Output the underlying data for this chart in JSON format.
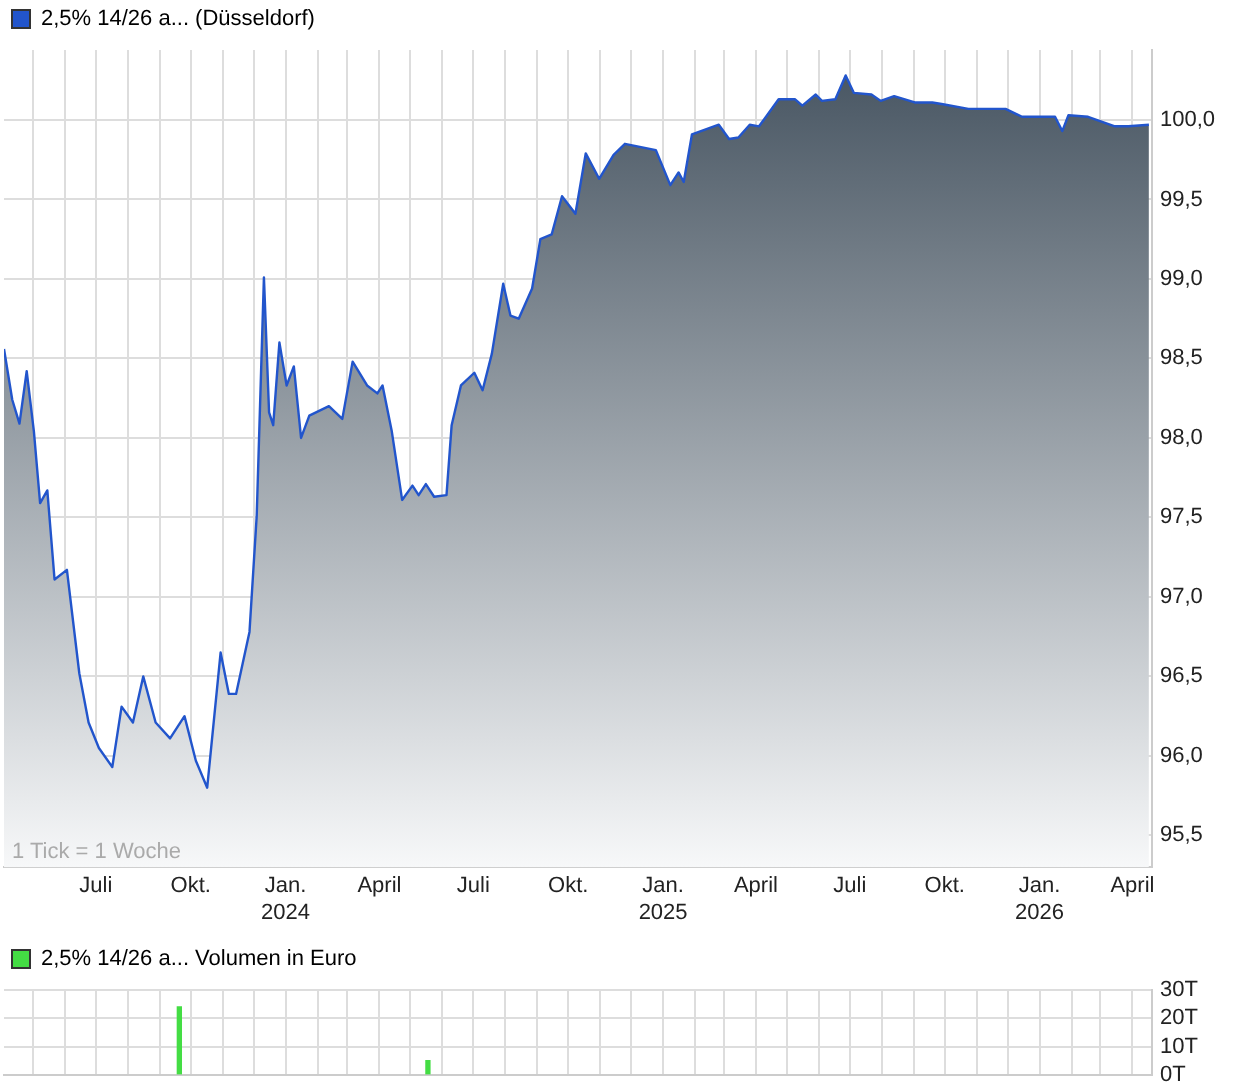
{
  "chart_data": [
    {
      "type": "area",
      "legend": "top left",
      "grid": true,
      "marker": "none",
      "annotations": [
        "1 Tick = 1 Woche"
      ],
      "x": [
        "2023-04-03",
        "2023-04-11",
        "2023-04-18",
        "2023-04-25",
        "2023-05-02",
        "2023-05-08",
        "2023-05-15",
        "2023-05-22",
        "2023-06-03",
        "2023-06-15",
        "2023-06-24",
        "2023-07-04",
        "2023-07-17",
        "2023-07-26",
        "2023-08-06",
        "2023-08-16",
        "2023-08-28",
        "2023-09-11",
        "2023-09-25",
        "2023-10-06",
        "2023-10-17",
        "2023-10-30",
        "2023-11-07",
        "2023-11-14",
        "2023-11-27",
        "2023-12-04",
        "2023-12-11",
        "2023-12-16",
        "2023-12-20",
        "2023-12-26",
        "2024-01-02",
        "2024-01-09",
        "2024-01-16",
        "2024-01-24",
        "2024-02-12",
        "2024-02-25",
        "2024-03-06",
        "2024-03-20",
        "2024-03-30",
        "2024-04-04",
        "2024-04-13",
        "2024-04-23",
        "2024-05-03",
        "2024-05-09",
        "2024-05-16",
        "2024-05-24",
        "2024-06-05",
        "2024-06-10",
        "2024-06-19",
        "2024-07-02",
        "2024-07-10",
        "2024-07-19",
        "2024-07-30",
        "2024-08-06",
        "2024-08-14",
        "2024-08-27",
        "2024-09-04",
        "2024-09-15",
        "2024-09-25",
        "2024-10-08",
        "2024-10-18",
        "2024-10-31",
        "2024-11-14",
        "2024-11-25",
        "2024-12-25",
        "2025-01-08",
        "2025-01-16",
        "2025-01-21",
        "2025-01-29",
        "2025-02-24",
        "2025-03-06",
        "2025-03-15",
        "2025-03-26",
        "2025-04-04",
        "2025-04-23",
        "2025-05-09",
        "2025-05-16",
        "2025-05-29",
        "2025-06-04",
        "2025-06-17",
        "2025-06-27",
        "2025-07-05",
        "2025-07-22",
        "2025-07-31",
        "2025-08-13",
        "2025-09-02",
        "2025-09-19",
        "2025-09-28",
        "2025-10-24",
        "2025-11-29",
        "2025-12-15",
        "2026-01-16",
        "2026-01-23",
        "2026-01-29",
        "2026-02-17",
        "2026-03-15",
        "2026-03-28",
        "2026-04-17"
      ],
      "series": [
        {
          "name": "2,5% 14/26 a... (Düsseldorf)",
          "color": "#2255cc",
          "values": [
            98.56,
            98.24,
            98.09,
            98.42,
            98.04,
            97.59,
            97.67,
            97.11,
            97.17,
            96.52,
            96.21,
            96.05,
            95.93,
            96.31,
            96.21,
            96.5,
            96.21,
            96.11,
            96.25,
            95.97,
            95.8,
            96.65,
            96.39,
            96.39,
            96.78,
            97.51,
            99.01,
            98.16,
            98.08,
            98.6,
            98.33,
            98.45,
            98.0,
            98.14,
            98.2,
            98.12,
            98.48,
            98.33,
            98.28,
            98.33,
            98.04,
            97.61,
            97.7,
            97.64,
            97.71,
            97.63,
            97.64,
            98.08,
            98.33,
            98.41,
            98.3,
            98.53,
            98.97,
            98.77,
            98.75,
            98.94,
            99.25,
            99.28,
            99.52,
            99.41,
            99.79,
            99.63,
            99.78,
            99.85,
            99.81,
            99.59,
            99.67,
            99.61,
            99.91,
            99.97,
            99.88,
            99.89,
            99.97,
            99.96,
            100.13,
            100.13,
            100.09,
            100.16,
            100.12,
            100.13,
            100.28,
            100.17,
            100.16,
            100.12,
            100.15,
            100.11,
            100.11,
            100.1,
            100.07,
            100.07,
            100.02,
            100.02,
            99.93,
            100.03,
            100.02,
            99.96,
            99.96,
            99.97
          ]
        }
      ],
      "xlim": [
        "2023-04-03",
        "2026-04-20"
      ],
      "xticks": [
        {
          "value": "2023-05-01",
          "label": null
        },
        {
          "value": "2023-06-01",
          "label": null
        },
        {
          "value": "2023-07-01",
          "label": "Juli"
        },
        {
          "value": "2023-08-01",
          "label": null
        },
        {
          "value": "2023-09-01",
          "label": null
        },
        {
          "value": "2023-10-01",
          "label": "Okt."
        },
        {
          "value": "2023-11-01",
          "label": null
        },
        {
          "value": "2023-12-01",
          "label": null
        },
        {
          "value": "2024-01-01",
          "label": "Jan.\n2024"
        },
        {
          "value": "2024-02-01",
          "label": null
        },
        {
          "value": "2024-03-01",
          "label": null
        },
        {
          "value": "2024-04-01",
          "label": "April"
        },
        {
          "value": "2024-05-01",
          "label": null
        },
        {
          "value": "2024-06-01",
          "label": null
        },
        {
          "value": "2024-07-01",
          "label": "Juli"
        },
        {
          "value": "2024-08-01",
          "label": null
        },
        {
          "value": "2024-09-01",
          "label": null
        },
        {
          "value": "2024-10-01",
          "label": "Okt."
        },
        {
          "value": "2024-11-01",
          "label": null
        },
        {
          "value": "2024-12-01",
          "label": null
        },
        {
          "value": "2025-01-01",
          "label": "Jan.\n2025"
        },
        {
          "value": "2025-02-01",
          "label": null
        },
        {
          "value": "2025-03-01",
          "label": null
        },
        {
          "value": "2025-04-01",
          "label": "April"
        },
        {
          "value": "2025-05-01",
          "label": null
        },
        {
          "value": "2025-06-01",
          "label": null
        },
        {
          "value": "2025-07-01",
          "label": "Juli"
        },
        {
          "value": "2025-08-01",
          "label": null
        },
        {
          "value": "2025-09-01",
          "label": null
        },
        {
          "value": "2025-10-01",
          "label": "Okt."
        },
        {
          "value": "2025-11-01",
          "label": null
        },
        {
          "value": "2025-12-01",
          "label": null
        },
        {
          "value": "2026-01-01",
          "label": "Jan.\n2026"
        },
        {
          "value": "2026-02-01",
          "label": null
        },
        {
          "value": "2026-03-01",
          "label": null
        },
        {
          "value": "2026-04-01",
          "label": "April"
        }
      ],
      "ylim": [
        95.3,
        100.44
      ],
      "yticks": [
        {
          "value": 95.5,
          "label": "95,5"
        },
        {
          "value": 96,
          "label": "96,0"
        },
        {
          "value": 96.5,
          "label": "96,5"
        },
        {
          "value": 97,
          "label": "97,0"
        },
        {
          "value": 97.5,
          "label": "97,5"
        },
        {
          "value": 98,
          "label": "98,0"
        },
        {
          "value": 98.5,
          "label": "98,5"
        },
        {
          "value": 99,
          "label": "99,0"
        },
        {
          "value": 99.5,
          "label": "99,5"
        },
        {
          "value": 100,
          "label": "100,0"
        }
      ]
    },
    {
      "type": "bar",
      "legend": "top left",
      "grid": true,
      "tick_labels": "y",
      "x": [
        "2023-09-20",
        "2024-05-18"
      ],
      "series": [
        {
          "name": "2,5% 14/26 a... Volumen in Euro",
          "color": "#44dd44",
          "values": [
            24,
            5
          ]
        }
      ],
      "xlim": [
        "2023-04-03",
        "2026-04-20"
      ],
      "xticks": [
        {
          "value": "2023-05-01",
          "label": null
        },
        {
          "value": "2023-06-01",
          "label": null
        },
        {
          "value": "2023-07-01",
          "label": null
        },
        {
          "value": "2023-08-01",
          "label": null
        },
        {
          "value": "2023-09-01",
          "label": null
        },
        {
          "value": "2023-10-01",
          "label": null
        },
        {
          "value": "2023-11-01",
          "label": null
        },
        {
          "value": "2023-12-01",
          "label": null
        },
        {
          "value": "2024-01-01",
          "label": null
        },
        {
          "value": "2024-02-01",
          "label": null
        },
        {
          "value": "2024-03-01",
          "label": null
        },
        {
          "value": "2024-04-01",
          "label": null
        },
        {
          "value": "2024-05-01",
          "label": null
        },
        {
          "value": "2024-06-01",
          "label": null
        },
        {
          "value": "2024-07-01",
          "label": null
        },
        {
          "value": "2024-08-01",
          "label": null
        },
        {
          "value": "2024-09-01",
          "label": null
        },
        {
          "value": "2024-10-01",
          "label": null
        },
        {
          "value": "2024-11-01",
          "label": null
        },
        {
          "value": "2024-12-01",
          "label": null
        },
        {
          "value": "2025-01-01",
          "label": null
        },
        {
          "value": "2025-02-01",
          "label": null
        },
        {
          "value": "2025-03-01",
          "label": null
        },
        {
          "value": "2025-04-01",
          "label": null
        },
        {
          "value": "2025-05-01",
          "label": null
        },
        {
          "value": "2025-06-01",
          "label": null
        },
        {
          "value": "2025-07-01",
          "label": null
        },
        {
          "value": "2025-08-01",
          "label": null
        },
        {
          "value": "2025-09-01",
          "label": null
        },
        {
          "value": "2025-10-01",
          "label": null
        },
        {
          "value": "2025-11-01",
          "label": null
        },
        {
          "value": "2025-12-01",
          "label": null
        },
        {
          "value": "2026-01-01",
          "label": null
        },
        {
          "value": "2026-02-01",
          "label": null
        },
        {
          "value": "2026-03-01",
          "label": null
        },
        {
          "value": "2026-04-01",
          "label": null
        }
      ],
      "ylim": [
        0,
        30
      ],
      "yticks": [
        {
          "value": 0,
          "label": "0T"
        },
        {
          "value": 10,
          "label": "10T"
        },
        {
          "value": 20,
          "label": "20T"
        },
        {
          "value": 30,
          "label": "30T"
        }
      ]
    }
  ]
}
